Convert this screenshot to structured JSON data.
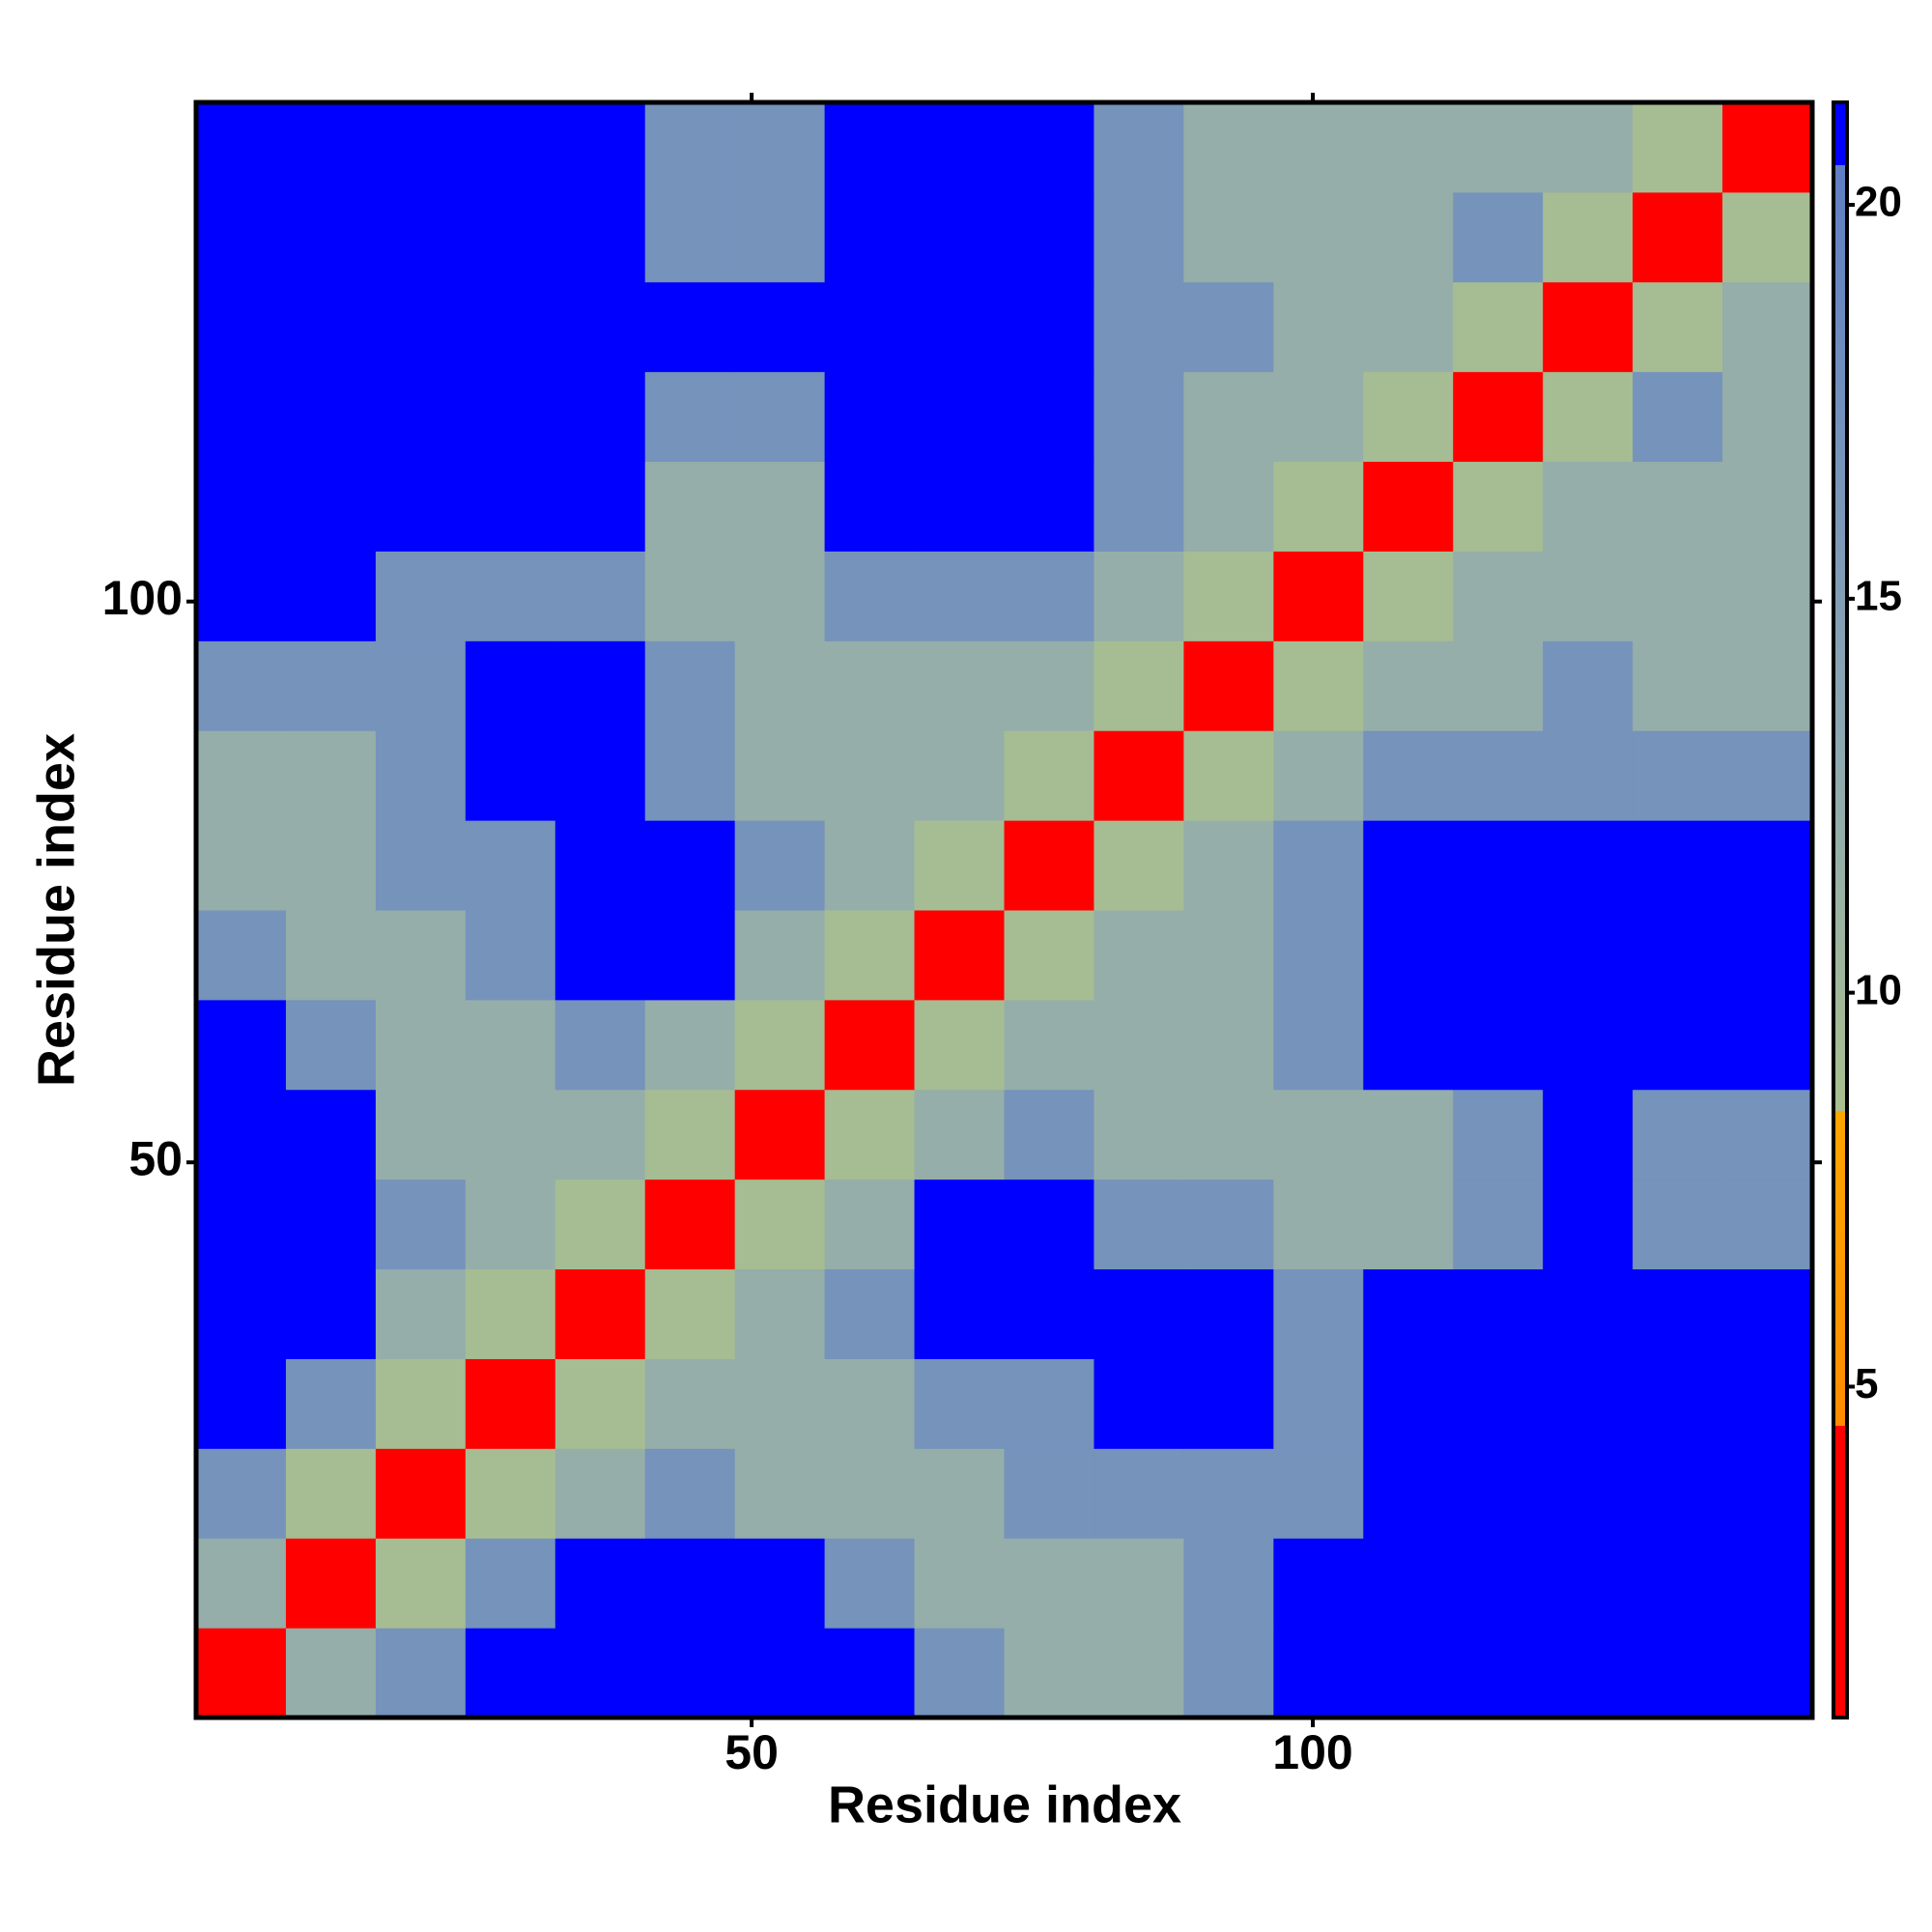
{
  "chart_data": {
    "type": "heatmap",
    "xlabel": "Residue index",
    "ylabel": "Residue index",
    "xbins": [
      0.5,
      8.5,
      16.5,
      24.5,
      32.5,
      40.5,
      48.5,
      56.5,
      64.5,
      72.5,
      80.5,
      88.5,
      96.5,
      104.5,
      112.5,
      120.5,
      128.5,
      136.5,
      144.5
    ],
    "ybins": [
      0.5,
      8.5,
      16.5,
      24.5,
      32.5,
      40.5,
      48.5,
      56.5,
      64.5,
      72.5,
      80.5,
      88.5,
      96.5,
      104.5,
      112.5,
      120.5,
      128.5,
      136.5,
      144.5
    ],
    "xlim": [
      0.5,
      144.5
    ],
    "ylim": [
      0.5,
      144.5
    ],
    "xticks": [
      50,
      100
    ],
    "yticks": [
      50,
      100
    ],
    "z": [
      [
        3,
        12,
        17,
        21,
        21,
        21,
        21,
        21,
        17,
        12,
        12,
        17,
        21,
        21,
        21,
        21,
        21,
        21
      ],
      [
        12,
        3,
        9,
        17,
        21,
        21,
        21,
        17,
        12,
        12,
        12,
        17,
        21,
        21,
        21,
        21,
        21,
        21
      ],
      [
        17,
        9,
        3,
        9,
        12,
        17,
        12,
        12,
        12,
        17,
        17,
        17,
        17,
        21,
        21,
        21,
        21,
        21
      ],
      [
        21,
        17,
        9,
        3,
        9,
        12,
        12,
        12,
        17,
        17,
        21,
        21,
        17,
        21,
        21,
        21,
        21,
        21
      ],
      [
        21,
        21,
        12,
        9,
        3,
        9,
        12,
        17,
        21,
        21,
        21,
        21,
        17,
        21,
        21,
        21,
        21,
        21
      ],
      [
        21,
        21,
        17,
        12,
        9,
        3,
        9,
        12,
        21,
        21,
        17,
        17,
        12,
        12,
        17,
        21,
        17,
        17
      ],
      [
        21,
        21,
        12,
        12,
        12,
        9,
        3,
        9,
        12,
        17,
        12,
        12,
        12,
        12,
        17,
        21,
        17,
        17
      ],
      [
        21,
        17,
        12,
        12,
        17,
        12,
        9,
        3,
        9,
        12,
        12,
        12,
        17,
        21,
        21,
        21,
        21,
        21
      ],
      [
        17,
        12,
        12,
        17,
        21,
        21,
        12,
        9,
        3,
        9,
        12,
        12,
        17,
        21,
        21,
        21,
        21,
        21
      ],
      [
        12,
        12,
        17,
        17,
        21,
        21,
        17,
        12,
        9,
        3,
        9,
        12,
        17,
        21,
        21,
        21,
        21,
        21
      ],
      [
        12,
        12,
        17,
        21,
        21,
        17,
        12,
        12,
        12,
        9,
        3,
        9,
        12,
        17,
        17,
        17,
        17,
        17
      ],
      [
        17,
        17,
        17,
        21,
        21,
        17,
        12,
        12,
        12,
        12,
        9,
        3,
        9,
        12,
        12,
        17,
        12,
        12
      ],
      [
        21,
        21,
        17,
        17,
        17,
        12,
        12,
        17,
        17,
        17,
        12,
        9,
        3,
        9,
        12,
        12,
        12,
        12
      ],
      [
        21,
        21,
        21,
        21,
        21,
        12,
        12,
        21,
        21,
        21,
        17,
        12,
        9,
        3,
        9,
        12,
        12,
        12
      ],
      [
        21,
        21,
        21,
        21,
        21,
        17,
        17,
        21,
        21,
        21,
        17,
        12,
        12,
        9,
        3,
        9,
        17,
        12
      ],
      [
        21,
        21,
        21,
        21,
        21,
        21,
        21,
        21,
        21,
        21,
        17,
        17,
        12,
        12,
        9,
        3,
        9,
        12
      ],
      [
        21,
        21,
        21,
        21,
        21,
        17,
        17,
        21,
        21,
        21,
        17,
        12,
        12,
        12,
        17,
        9,
        3,
        9
      ],
      [
        21,
        21,
        21,
        21,
        21,
        17,
        17,
        21,
        21,
        21,
        17,
        12,
        12,
        12,
        12,
        12,
        9,
        3
      ]
    ],
    "colorscale": [
      {
        "value": 0.8,
        "color": "#ff0000"
      },
      {
        "value": 4.5,
        "color": "#ff0000"
      },
      {
        "value": 4.5,
        "color": "#ff8c00"
      },
      {
        "value": 8.5,
        "color": "#ffa500"
      },
      {
        "value": 8.5,
        "color": "#a9bf8f"
      },
      {
        "value": 13,
        "color": "#8fa9b0"
      },
      {
        "value": 20.5,
        "color": "#5f7fc4"
      },
      {
        "value": 20.5,
        "color": "#0000ff"
      },
      {
        "value": 21.3,
        "color": "#0000ff"
      }
    ],
    "clim": [
      0.8,
      21.3
    ],
    "cticks": [
      5,
      10,
      15,
      20
    ]
  }
}
